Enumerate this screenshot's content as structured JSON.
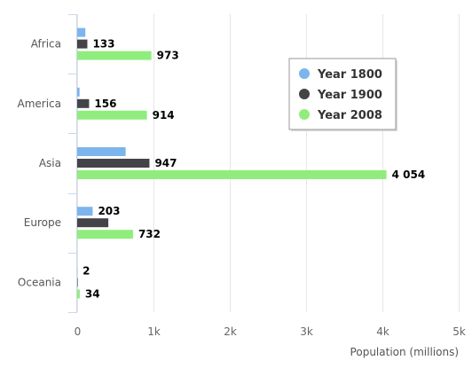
{
  "chart_data": {
    "type": "bar",
    "orientation": "horizontal",
    "categories": [
      "Africa",
      "America",
      "Asia",
      "Europe",
      "Oceania"
    ],
    "series": [
      {
        "name": "Year 1800",
        "values": [
          107,
          31,
          635,
          203,
          2
        ],
        "color": "#7cb5ec"
      },
      {
        "name": "Year 1900",
        "values": [
          133,
          156,
          947,
          408,
          6
        ],
        "color": "#434348"
      },
      {
        "name": "Year 2008",
        "values": [
          973,
          914,
          4054,
          732,
          34
        ],
        "color": "#90ed7d"
      }
    ],
    "data_labels": [
      {
        "category": "Africa",
        "series": "Year 1900",
        "text": "133"
      },
      {
        "category": "Africa",
        "series": "Year 2008",
        "text": "973"
      },
      {
        "category": "America",
        "series": "Year 1900",
        "text": "156"
      },
      {
        "category": "America",
        "series": "Year 2008",
        "text": "914"
      },
      {
        "category": "Asia",
        "series": "Year 1900",
        "text": "947"
      },
      {
        "category": "Asia",
        "series": "Year 2008",
        "text": "4 054"
      },
      {
        "category": "Europe",
        "series": "Year 1800",
        "text": "203"
      },
      {
        "category": "Europe",
        "series": "Year 2008",
        "text": "732"
      },
      {
        "category": "Oceania",
        "series": "Year 1800",
        "text": "2"
      },
      {
        "category": "Oceania",
        "series": "Year 2008",
        "text": "34"
      }
    ],
    "x_ticks": [
      {
        "value": 0,
        "label": "0"
      },
      {
        "value": 1000,
        "label": "1k"
      },
      {
        "value": 2000,
        "label": "2k"
      },
      {
        "value": 3000,
        "label": "3k"
      },
      {
        "value": 4000,
        "label": "4k"
      },
      {
        "value": 5000,
        "label": "5k"
      }
    ],
    "xlim": [
      0,
      5000
    ],
    "xlabel": "Population (millions)",
    "title": "",
    "grid": true,
    "legend_position": "top-right"
  }
}
